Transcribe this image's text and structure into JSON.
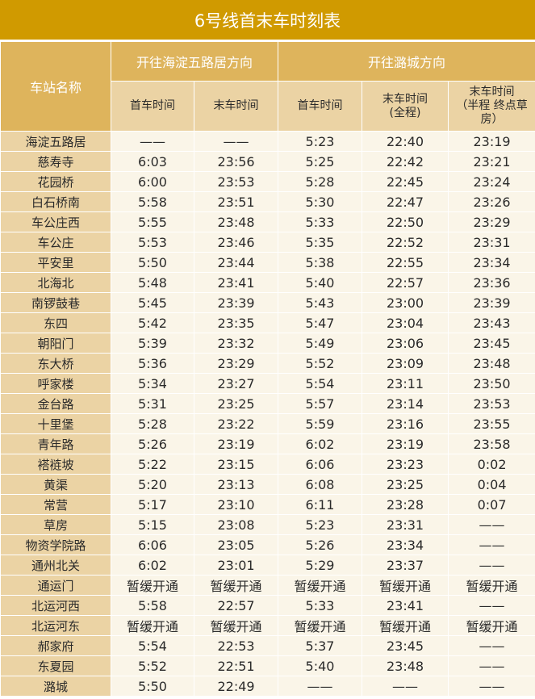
{
  "title": "6号线首末车时刻表",
  "header": {
    "station": "车站名称",
    "dir1": "开往海淀五路居方向",
    "dir2": "开往潞城方向",
    "cols": [
      "首车时间",
      "末车时间",
      "首车时间",
      "末车时间\n(全程)",
      "末车时间\n（半程 终点草房）"
    ]
  },
  "rows": [
    [
      "海淀五路居",
      "——",
      "——",
      "5:23",
      "22:40",
      "23:19"
    ],
    [
      "慈寿寺",
      "6:03",
      "23:56",
      "5:25",
      "22:42",
      "23:21"
    ],
    [
      "花园桥",
      "6:00",
      "23:53",
      "5:28",
      "22:45",
      "23:24"
    ],
    [
      "白石桥南",
      "5:58",
      "23:51",
      "5:30",
      "22:47",
      "23:26"
    ],
    [
      "车公庄西",
      "5:55",
      "23:48",
      "5:33",
      "22:50",
      "23:29"
    ],
    [
      "车公庄",
      "5:53",
      "23:46",
      "5:35",
      "22:52",
      "23:31"
    ],
    [
      "平安里",
      "5:50",
      "23:44",
      "5:38",
      "22:55",
      "23:34"
    ],
    [
      "北海北",
      "5:48",
      "23:41",
      "5:40",
      "22:57",
      "23:36"
    ],
    [
      "南锣鼓巷",
      "5:45",
      "23:39",
      "5:43",
      "23:00",
      "23:39"
    ],
    [
      "东四",
      "5:42",
      "23:35",
      "5:47",
      "23:04",
      "23:43"
    ],
    [
      "朝阳门",
      "5:39",
      "23:32",
      "5:49",
      "23:06",
      "23:45"
    ],
    [
      "东大桥",
      "5:36",
      "23:29",
      "5:52",
      "23:09",
      "23:48"
    ],
    [
      "呼家楼",
      "5:34",
      "23:27",
      "5:54",
      "23:11",
      "23:50"
    ],
    [
      "金台路",
      "5:31",
      "23:25",
      "5:57",
      "23:14",
      "23:53"
    ],
    [
      "十里堡",
      "5:28",
      "23:22",
      "5:59",
      "23:16",
      "23:55"
    ],
    [
      "青年路",
      "5:26",
      "23:19",
      "6:02",
      "23:19",
      "23:58"
    ],
    [
      "褡裢坡",
      "5:22",
      "23:15",
      "6:06",
      "23:23",
      "0:02"
    ],
    [
      "黄渠",
      "5:20",
      "23:13",
      "6:08",
      "23:25",
      "0:04"
    ],
    [
      "常营",
      "5:17",
      "23:10",
      "6:11",
      "23:28",
      "0:07"
    ],
    [
      "草房",
      "5:15",
      "23:08",
      "5:23",
      "23:31",
      "——"
    ],
    [
      "物资学院路",
      "6:06",
      "23:05",
      "5:26",
      "23:34",
      "——"
    ],
    [
      "通州北关",
      "6:02",
      "23:01",
      "5:29",
      "23:37",
      "——"
    ],
    [
      "通运门",
      "暂缓开通",
      "暂缓开通",
      "暂缓开通",
      "暂缓开通",
      "暂缓开通"
    ],
    [
      "北运河西",
      "5:58",
      "22:57",
      "5:33",
      "23:41",
      "——"
    ],
    [
      "北运河东",
      "暂缓开通",
      "暂缓开通",
      "暂缓开通",
      "暂缓开通",
      "暂缓开通"
    ],
    [
      "郝家府",
      "5:54",
      "22:53",
      "5:37",
      "23:45",
      "——"
    ],
    [
      "东夏园",
      "5:52",
      "22:51",
      "5:40",
      "23:48",
      "——"
    ],
    [
      "潞城",
      "5:50",
      "22:49",
      "——",
      "——",
      "——"
    ]
  ]
}
